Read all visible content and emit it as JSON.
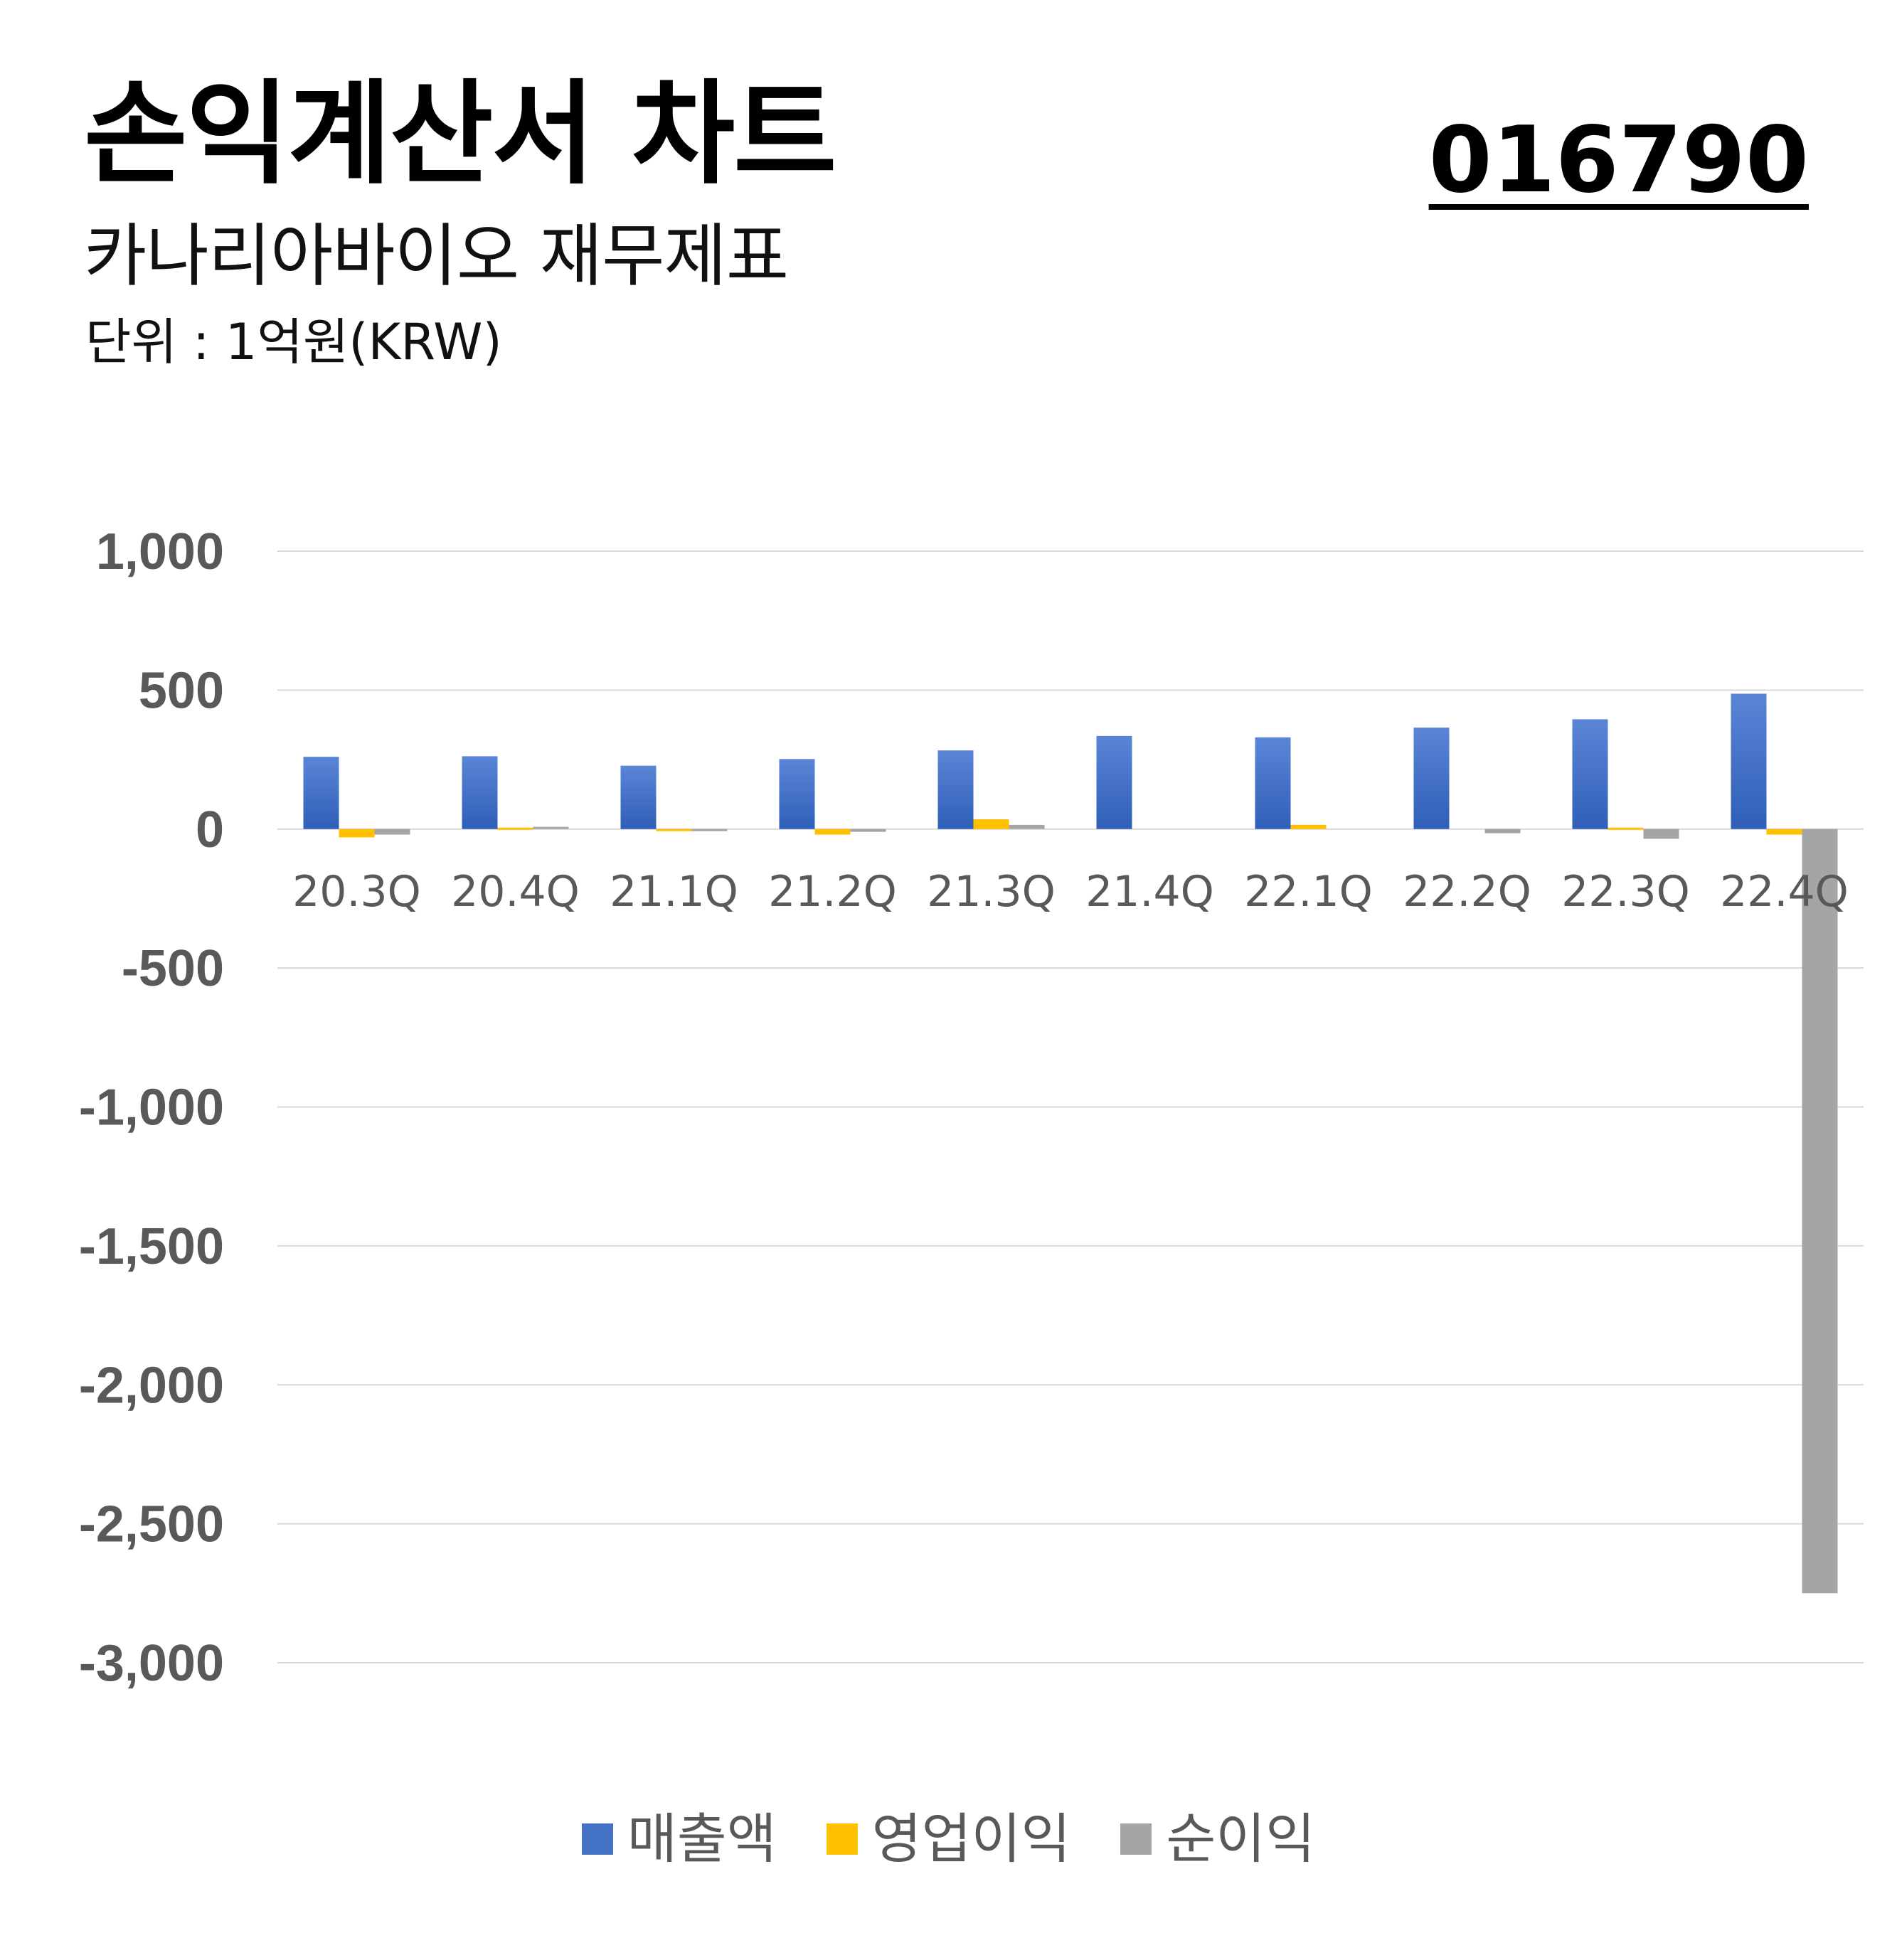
{
  "header": {
    "title": "손익계산서 차트",
    "subtitle": "카나리아바이오 재무제표",
    "unit": "단위 : 1억원(KRW)",
    "code": "016790"
  },
  "colors": {
    "revenue": "#4472C4",
    "operating_profit": "#FFC000",
    "net_profit": "#A5A5A5",
    "grid": "#D9D9D9",
    "axis_text": "#595959"
  },
  "chart_data": {
    "type": "bar",
    "categories": [
      "20.3Q",
      "20.4Q",
      "21.1Q",
      "21.2Q",
      "21.3Q",
      "21.4Q",
      "22.1Q",
      "22.2Q",
      "22.3Q",
      "22.4Q"
    ],
    "series": [
      {
        "name": "매출액",
        "values": [
          260,
          262,
          228,
          252,
          283,
          335,
          330,
          365,
          395,
          487
        ]
      },
      {
        "name": "영업이익",
        "values": [
          -30,
          5,
          -5,
          -20,
          35,
          0,
          15,
          0,
          5,
          -20
        ]
      },
      {
        "name": "순이익",
        "values": [
          -20,
          8,
          -5,
          -10,
          15,
          0,
          0,
          -15,
          -35,
          -2750
        ]
      }
    ],
    "yticks": [
      "1,000",
      "500",
      "0",
      "-500",
      "-1,000",
      "-1,500",
      "-2,000",
      "-2,500",
      "-3,000"
    ],
    "ylim": [
      -3000,
      1000
    ],
    "grid": true,
    "legend_position": "bottom"
  }
}
